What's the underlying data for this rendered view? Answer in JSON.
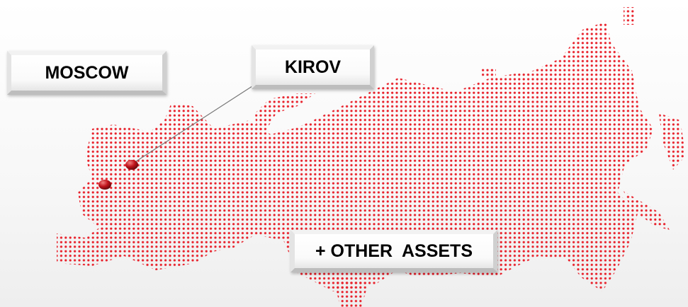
{
  "labels": {
    "moscow": "MOSCOW",
    "kirov": "KIROV",
    "other_assets": "+ OTHER  ASSETS"
  }
}
